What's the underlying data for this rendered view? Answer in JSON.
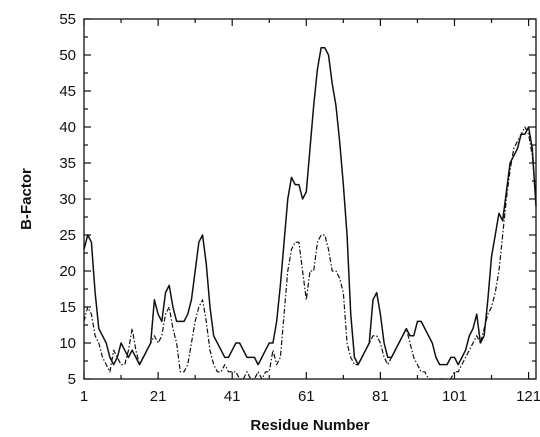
{
  "chart_data": {
    "type": "line",
    "title": "",
    "xlabel": "Residue Number",
    "ylabel": "B-Factor",
    "xlim": [
      1,
      123
    ],
    "ylim": [
      5,
      55
    ],
    "x_ticks": [
      1,
      21,
      41,
      61,
      81,
      101,
      121
    ],
    "y_ticks": [
      5,
      10,
      15,
      20,
      25,
      30,
      35,
      40,
      45,
      50,
      55
    ],
    "grid": false,
    "legend": "none",
    "series": [
      {
        "style": "solid",
        "points": [
          [
            1,
            23
          ],
          [
            2,
            25
          ],
          [
            3,
            24
          ],
          [
            4,
            17
          ],
          [
            5,
            12
          ],
          [
            6,
            11
          ],
          [
            7,
            10
          ],
          [
            8,
            8
          ],
          [
            9,
            7
          ],
          [
            10,
            8
          ],
          [
            11,
            10
          ],
          [
            12,
            9
          ],
          [
            13,
            8
          ],
          [
            14,
            9
          ],
          [
            15,
            8
          ],
          [
            16,
            7
          ],
          [
            17,
            8
          ],
          [
            18,
            9
          ],
          [
            19,
            10
          ],
          [
            20,
            16
          ],
          [
            21,
            14
          ],
          [
            22,
            13
          ],
          [
            23,
            17
          ],
          [
            24,
            18
          ],
          [
            25,
            15
          ],
          [
            26,
            13
          ],
          [
            27,
            13
          ],
          [
            28,
            13
          ],
          [
            29,
            14
          ],
          [
            30,
            16
          ],
          [
            31,
            20
          ],
          [
            32,
            24
          ],
          [
            33,
            25
          ],
          [
            34,
            21
          ],
          [
            35,
            15
          ],
          [
            36,
            11
          ],
          [
            37,
            10
          ],
          [
            38,
            9
          ],
          [
            39,
            8
          ],
          [
            40,
            8
          ],
          [
            41,
            9
          ],
          [
            42,
            10
          ],
          [
            43,
            10
          ],
          [
            44,
            9
          ],
          [
            45,
            8
          ],
          [
            46,
            8
          ],
          [
            47,
            8
          ],
          [
            48,
            7
          ],
          [
            49,
            8
          ],
          [
            50,
            9
          ],
          [
            51,
            10
          ],
          [
            52,
            10
          ],
          [
            53,
            13
          ],
          [
            54,
            18
          ],
          [
            55,
            24
          ],
          [
            56,
            30
          ],
          [
            57,
            33
          ],
          [
            58,
            32
          ],
          [
            59,
            32
          ],
          [
            60,
            30
          ],
          [
            61,
            31
          ],
          [
            62,
            37
          ],
          [
            63,
            43
          ],
          [
            64,
            48
          ],
          [
            65,
            51
          ],
          [
            66,
            51
          ],
          [
            67,
            50
          ],
          [
            68,
            46
          ],
          [
            69,
            43
          ],
          [
            70,
            38
          ],
          [
            71,
            32
          ],
          [
            72,
            25
          ],
          [
            73,
            14
          ],
          [
            74,
            8
          ],
          [
            75,
            7
          ],
          [
            76,
            8
          ],
          [
            77,
            9
          ],
          [
            78,
            10
          ],
          [
            79,
            16
          ],
          [
            80,
            17
          ],
          [
            81,
            14
          ],
          [
            82,
            10
          ],
          [
            83,
            8
          ],
          [
            84,
            8
          ],
          [
            85,
            9
          ],
          [
            86,
            10
          ],
          [
            87,
            11
          ],
          [
            88,
            12
          ],
          [
            89,
            11
          ],
          [
            90,
            11
          ],
          [
            91,
            13
          ],
          [
            92,
            13
          ],
          [
            93,
            12
          ],
          [
            94,
            11
          ],
          [
            95,
            10
          ],
          [
            96,
            8
          ],
          [
            97,
            7
          ],
          [
            98,
            7
          ],
          [
            99,
            7
          ],
          [
            100,
            8
          ],
          [
            101,
            8
          ],
          [
            102,
            7
          ],
          [
            103,
            8
          ],
          [
            104,
            9
          ],
          [
            105,
            11
          ],
          [
            106,
            12
          ],
          [
            107,
            14
          ],
          [
            108,
            10
          ],
          [
            109,
            11
          ],
          [
            110,
            16
          ],
          [
            111,
            22
          ],
          [
            112,
            25
          ],
          [
            113,
            28
          ],
          [
            114,
            27
          ],
          [
            115,
            31
          ],
          [
            116,
            35
          ],
          [
            117,
            36
          ],
          [
            118,
            37
          ],
          [
            119,
            39
          ],
          [
            120,
            39
          ],
          [
            121,
            40
          ],
          [
            122,
            37
          ],
          [
            123,
            29
          ]
        ]
      },
      {
        "style": "dash-dot",
        "points": [
          [
            1,
            13
          ],
          [
            2,
            15
          ],
          [
            3,
            14
          ],
          [
            4,
            11
          ],
          [
            5,
            10
          ],
          [
            6,
            8
          ],
          [
            7,
            7
          ],
          [
            8,
            6
          ],
          [
            9,
            9
          ],
          [
            10,
            8
          ],
          [
            11,
            7
          ],
          [
            12,
            7
          ],
          [
            13,
            9
          ],
          [
            14,
            12
          ],
          [
            15,
            9
          ],
          [
            16,
            7
          ],
          [
            17,
            8
          ],
          [
            18,
            9
          ],
          [
            19,
            10
          ],
          [
            20,
            11
          ],
          [
            21,
            10
          ],
          [
            22,
            11
          ],
          [
            23,
            14
          ],
          [
            24,
            15
          ],
          [
            25,
            12
          ],
          [
            26,
            10
          ],
          [
            27,
            6
          ],
          [
            28,
            6
          ],
          [
            29,
            7
          ],
          [
            30,
            10
          ],
          [
            31,
            13
          ],
          [
            32,
            15
          ],
          [
            33,
            16
          ],
          [
            34,
            13
          ],
          [
            35,
            9
          ],
          [
            36,
            7
          ],
          [
            37,
            6
          ],
          [
            38,
            6
          ],
          [
            39,
            7
          ],
          [
            40,
            6
          ],
          [
            41,
            6
          ],
          [
            42,
            6
          ],
          [
            43,
            5
          ],
          [
            44,
            5
          ],
          [
            45,
            6
          ],
          [
            46,
            5
          ],
          [
            47,
            5
          ],
          [
            48,
            6
          ],
          [
            49,
            5
          ],
          [
            50,
            6
          ],
          [
            51,
            6
          ],
          [
            52,
            9
          ],
          [
            53,
            7
          ],
          [
            54,
            8
          ],
          [
            55,
            14
          ],
          [
            56,
            20
          ],
          [
            57,
            23
          ],
          [
            58,
            24
          ],
          [
            59,
            24
          ],
          [
            60,
            20
          ],
          [
            61,
            16
          ],
          [
            62,
            20
          ],
          [
            63,
            20
          ],
          [
            64,
            24
          ],
          [
            65,
            25
          ],
          [
            66,
            25
          ],
          [
            67,
            23
          ],
          [
            68,
            20
          ],
          [
            69,
            20
          ],
          [
            70,
            19
          ],
          [
            71,
            17
          ],
          [
            72,
            10
          ],
          [
            73,
            8
          ],
          [
            74,
            7
          ],
          [
            75,
            7
          ],
          [
            76,
            8
          ],
          [
            77,
            9
          ],
          [
            78,
            10
          ],
          [
            79,
            11
          ],
          [
            80,
            11
          ],
          [
            81,
            10
          ],
          [
            82,
            8
          ],
          [
            83,
            7
          ],
          [
            84,
            8
          ],
          [
            85,
            9
          ],
          [
            86,
            10
          ],
          [
            87,
            11
          ],
          [
            88,
            12
          ],
          [
            89,
            10
          ],
          [
            90,
            8
          ],
          [
            91,
            7
          ],
          [
            92,
            6
          ],
          [
            93,
            6
          ],
          [
            94,
            5
          ],
          [
            95,
            5
          ],
          [
            96,
            5
          ],
          [
            97,
            5
          ],
          [
            98,
            5
          ],
          [
            99,
            5
          ],
          [
            100,
            5
          ],
          [
            101,
            6
          ],
          [
            102,
            6
          ],
          [
            103,
            7
          ],
          [
            104,
            8
          ],
          [
            105,
            9
          ],
          [
            106,
            10
          ],
          [
            107,
            11
          ],
          [
            108,
            10
          ],
          [
            109,
            12
          ],
          [
            110,
            14
          ],
          [
            111,
            15
          ],
          [
            112,
            17
          ],
          [
            113,
            20
          ],
          [
            114,
            25
          ],
          [
            115,
            30
          ],
          [
            116,
            34
          ],
          [
            117,
            37
          ],
          [
            118,
            38
          ],
          [
            119,
            39
          ],
          [
            120,
            40
          ],
          [
            121,
            39
          ],
          [
            122,
            36
          ],
          [
            123,
            30
          ]
        ]
      }
    ]
  }
}
